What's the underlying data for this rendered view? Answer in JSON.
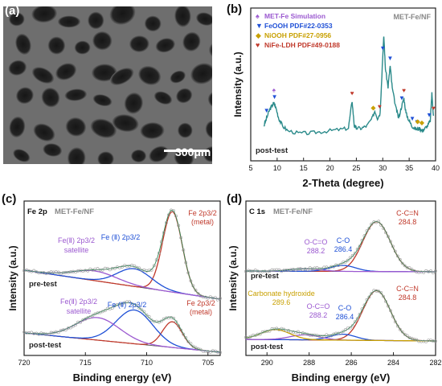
{
  "panels": {
    "a": {
      "letter": "(a)",
      "scale_bar": "300μm"
    },
    "b": {
      "letter": "(b)",
      "sample": "MET-Fe/NF",
      "condition": "post-test",
      "xlabel": "2-Theta (degree)",
      "ylabel": "Intensity (a.u.)",
      "xticks": [
        "5",
        "10",
        "15",
        "20",
        "25",
        "30",
        "35",
        "40"
      ],
      "legend": [
        {
          "symbol": "♠",
          "label": "MET-Fe Simulation",
          "color": "#9b59d0"
        },
        {
          "symbol": "▼",
          "label": "FeOOH PDF#22-0353",
          "color": "#1f50d6"
        },
        {
          "symbol": "◆",
          "label": "NiOOH PDF#27-0956",
          "color": "#c8a000"
        },
        {
          "symbol": "♥",
          "label": "NiFe-LDH PDF#49-0188",
          "color": "#c0392b"
        }
      ]
    },
    "c": {
      "letter": "(c)",
      "region": "Fe 2p",
      "sample": "MET-Fe/NF",
      "xlabel": "Binding energy (eV)",
      "ylabel": "Intensity (a.u.)",
      "xticks": [
        "720",
        "715",
        "710",
        "705"
      ],
      "pre_label": "pre-test",
      "post_label": "post-test",
      "annotations": {
        "pre_metal": "Fe 2p3/2 (metal)",
        "pre_fe2": "Fe (Ⅱ) 2p3/2",
        "pre_sat": "Fe(Ⅱ) 2p3/2 satellite",
        "post_metal": "Fe 2p3/2 (metal)",
        "post_fe2": "Fe (Ⅱ) 2p3/2",
        "post_sat": "Fe(Ⅱ) 2p3/2 satellite"
      }
    },
    "d": {
      "letter": "(d)",
      "region": "C 1s",
      "sample": "MET-Fe/NF",
      "xlabel": "Binding energy (eV)",
      "ylabel": "Intensity (a.u.)",
      "xticks": [
        "290",
        "288",
        "286",
        "284",
        "282"
      ],
      "pre_label": "pre-test",
      "post_label": "post-test",
      "annotations": {
        "cc_name": "C-C=N",
        "cc_value": "284.8",
        "co_name": "C-O",
        "co_value": "286.4",
        "oco_name": "O-C=O",
        "oco_value": "288.2",
        "carb_name": "Carbonate hydroxide",
        "carb_value": "289.6"
      }
    }
  },
  "chart_data": [
    {
      "type": "line",
      "panel": "b",
      "xlabel": "2-Theta (degree)",
      "ylabel": "Intensity (a.u.)",
      "xlim": [
        5,
        40
      ],
      "series": [
        {
          "name": "post-test",
          "color": "#2a8a8a",
          "x": [
            7.5,
            8.0,
            8.5,
            9.0,
            9.4,
            9.8,
            10.3,
            11,
            12,
            14,
            16,
            18,
            20,
            22,
            23.5,
            24.2,
            24.6,
            25,
            26,
            27,
            28,
            28.5,
            29,
            29.5,
            30.0,
            30.2,
            30.5,
            31,
            31.4,
            31.8,
            32.5,
            33,
            33.6,
            34,
            34.4,
            35,
            35.5,
            36,
            36.5,
            37,
            37.5,
            38,
            38.5,
            39,
            39.3,
            39.6
          ],
          "y": [
            14,
            20,
            26,
            30,
            32,
            28,
            20,
            14,
            10,
            8,
            8,
            9,
            10,
            11,
            12,
            34,
            14,
            12,
            12,
            14,
            20,
            26,
            20,
            24,
            70,
            86,
            60,
            45,
            62,
            44,
            28,
            20,
            30,
            36,
            24,
            18,
            14,
            12,
            11,
            12,
            10,
            12,
            14,
            18,
            40,
            22
          ]
        }
      ],
      "markers": [
        {
          "phase": "MET-Fe Simulation",
          "x": [
            9.4
          ]
        },
        {
          "phase": "FeOOH PDF#22-0353",
          "x": [
            8.0,
            9.5,
            30.0,
            31.4,
            33.6,
            35.6,
            36.5,
            38.8
          ]
        },
        {
          "phase": "NiOOH PDF#27-0956",
          "x": [
            28.2,
            36.6,
            37.4
          ]
        },
        {
          "phase": "NiFe-LDH PDF#49-0188",
          "x": [
            24.2,
            29.4,
            34.0,
            39.6
          ]
        }
      ]
    },
    {
      "type": "line",
      "panel": "c",
      "xlabel": "Binding energy (eV)",
      "ylabel": "Intensity (a.u.)",
      "xlim": [
        720,
        704
      ],
      "x_reversed": true,
      "components": {
        "pre-test": [
          {
            "label": "Fe 2p3/2 (metal)",
            "center": 707.9,
            "height": 1.0,
            "width": 0.8,
            "color": "#c0392b"
          },
          {
            "label": "Fe (Ⅱ) 2p3/2",
            "center": 711.0,
            "height": 0.22,
            "width": 1.4,
            "color": "#1f50d6"
          },
          {
            "label": "Fe(Ⅱ) 2p3/2 satellite",
            "center": 714.2,
            "height": 0.12,
            "width": 1.8,
            "color": "#9b59d0"
          }
        ],
        "post-test": [
          {
            "label": "Fe 2p3/2 (metal)",
            "center": 707.9,
            "height": 0.32,
            "width": 0.8,
            "color": "#c0392b"
          },
          {
            "label": "Fe (Ⅱ) 2p3/2",
            "center": 711.0,
            "height": 0.42,
            "width": 1.5,
            "color": "#1f50d6"
          },
          {
            "label": "Fe(Ⅱ) 2p3/2 satellite",
            "center": 714.0,
            "height": 0.28,
            "width": 1.8,
            "color": "#9b59d0"
          }
        ]
      }
    },
    {
      "type": "line",
      "panel": "d",
      "xlabel": "Binding energy (eV)",
      "ylabel": "Intensity (a.u.)",
      "xlim": [
        291,
        282
      ],
      "x_reversed": true,
      "components": {
        "pre-test": [
          {
            "label": "C-C=N",
            "center": 284.8,
            "height": 1.0,
            "width": 0.65,
            "color": "#c0392b"
          },
          {
            "label": "C-O",
            "center": 286.4,
            "height": 0.12,
            "width": 0.6,
            "color": "#1f50d6"
          },
          {
            "label": "O-C=O",
            "center": 288.2,
            "height": 0.05,
            "width": 0.7,
            "color": "#9b59d0"
          }
        ],
        "post-test": [
          {
            "label": "C-C=N",
            "center": 284.8,
            "height": 1.0,
            "width": 0.65,
            "color": "#c0392b"
          },
          {
            "label": "C-O",
            "center": 286.4,
            "height": 0.12,
            "width": 0.6,
            "color": "#1f50d6"
          },
          {
            "label": "O-C=O",
            "center": 288.2,
            "height": 0.1,
            "width": 0.7,
            "color": "#9b59d0"
          },
          {
            "label": "Carbonate hydroxide",
            "center": 289.6,
            "height": 0.2,
            "width": 0.7,
            "color": "#c8a000"
          }
        ]
      }
    }
  ]
}
